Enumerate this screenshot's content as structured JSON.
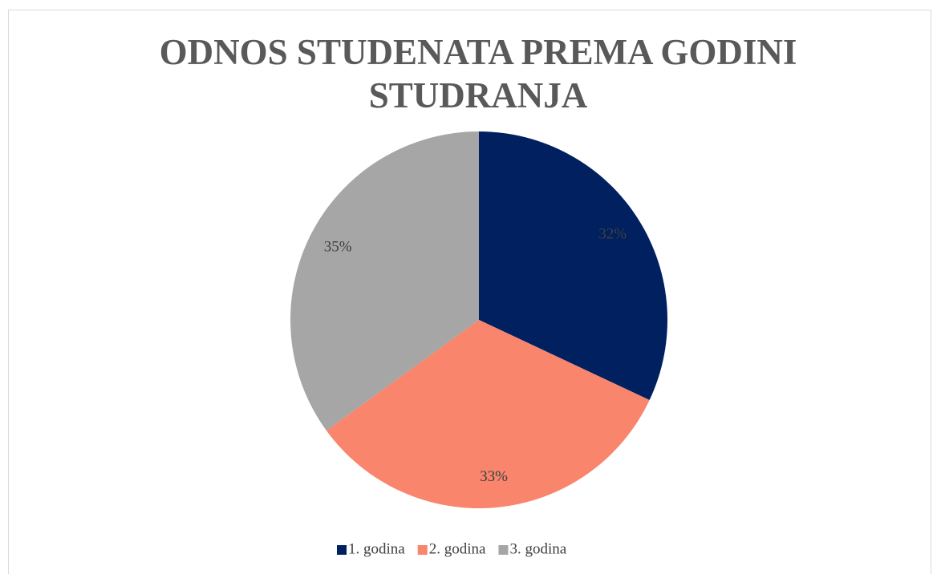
{
  "chart_data": {
    "type": "pie",
    "title": "ODNOS STUDENATA PREMA GODINI STUDRANJA",
    "categories": [
      "1. godina",
      "2. godina",
      "3. godina"
    ],
    "values": [
      32,
      33,
      35
    ],
    "value_labels": [
      "32%",
      "33%",
      "35%"
    ],
    "colors": [
      "#002060",
      "#f8856c",
      "#a6a6a6"
    ],
    "legend": "bottom"
  }
}
